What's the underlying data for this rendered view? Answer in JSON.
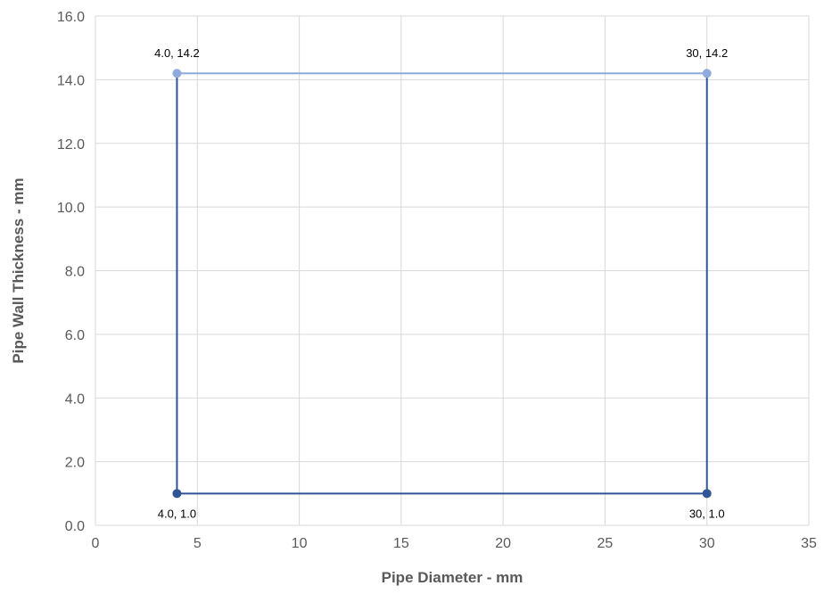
{
  "chart_data": {
    "type": "scatter",
    "xlabel": "Pipe Diameter - mm",
    "ylabel": "Pipe Wall Thickness - mm",
    "xlim": [
      0,
      35
    ],
    "ylim": [
      0,
      16
    ],
    "x_ticks": [
      0,
      5,
      10,
      15,
      20,
      25,
      30,
      35
    ],
    "x_tick_labels": [
      "0",
      "5",
      "10",
      "15",
      "20",
      "25",
      "30",
      "35"
    ],
    "y_ticks": [
      0,
      2,
      4,
      6,
      8,
      10,
      12,
      14,
      16
    ],
    "y_tick_labels": [
      "0.0",
      "2.0",
      "4.0",
      "6.0",
      "8.0",
      "10.0",
      "12.0",
      "14.0",
      "16.0"
    ],
    "grid": true,
    "legend": "none",
    "series": [
      {
        "points": [
          {
            "x": 4.0,
            "y": 1.0,
            "label": "4.0, 1.0"
          },
          {
            "x": 30,
            "y": 1.0,
            "label": "30, 1.0"
          },
          {
            "x": 30,
            "y": 14.2,
            "label": "30, 14.2"
          },
          {
            "x": 4.0,
            "y": 14.2,
            "label": "4.0, 14.2"
          },
          {
            "x": 4.0,
            "y": 1.0
          }
        ],
        "color": "#2f5597",
        "top_edge_color": "#8faadc",
        "marker": "circle"
      }
    ]
  }
}
